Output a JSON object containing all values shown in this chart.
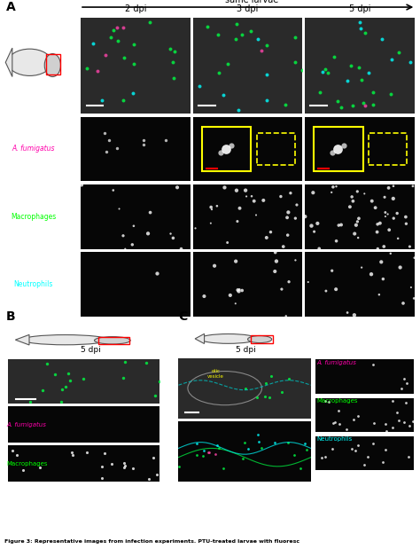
{
  "title": "Figure 3: Representative images from infection experiments.",
  "caption": "Figure 3: Representative images from infection experiments. PTU-treated larvae with fluoresc",
  "bg_color": "#000000",
  "fig_bg": "#ffffff",
  "panel_A_label": "A",
  "panel_B_label": "B",
  "panel_C_label": "C",
  "col_labels": [
    "2 dpi",
    "3 dpi",
    "5 dpi"
  ],
  "arrow_text": "same larvae",
  "row_labels_A": [
    "",
    "A. fumigatus",
    "Macrophages",
    "Neutrophils"
  ],
  "label_colors": {
    "A. fumigatus": "#ff00aa",
    "Macrophages": "#00ff00",
    "Neutrophils": "#00ffff"
  },
  "B_labels": [
    "A. fumigatus",
    "Macrophages"
  ],
  "C_labels": [
    "A. fumigatus",
    "Macrophages",
    "Neutrophils"
  ],
  "dpi_B": "5 dpi",
  "dpi_C": "5 dpi",
  "otic_vesicle_text": "otic\nvesicle",
  "caption_text": "Figure 3: Representative images from infection experiments. PTU-treated larvae with fluoresc"
}
